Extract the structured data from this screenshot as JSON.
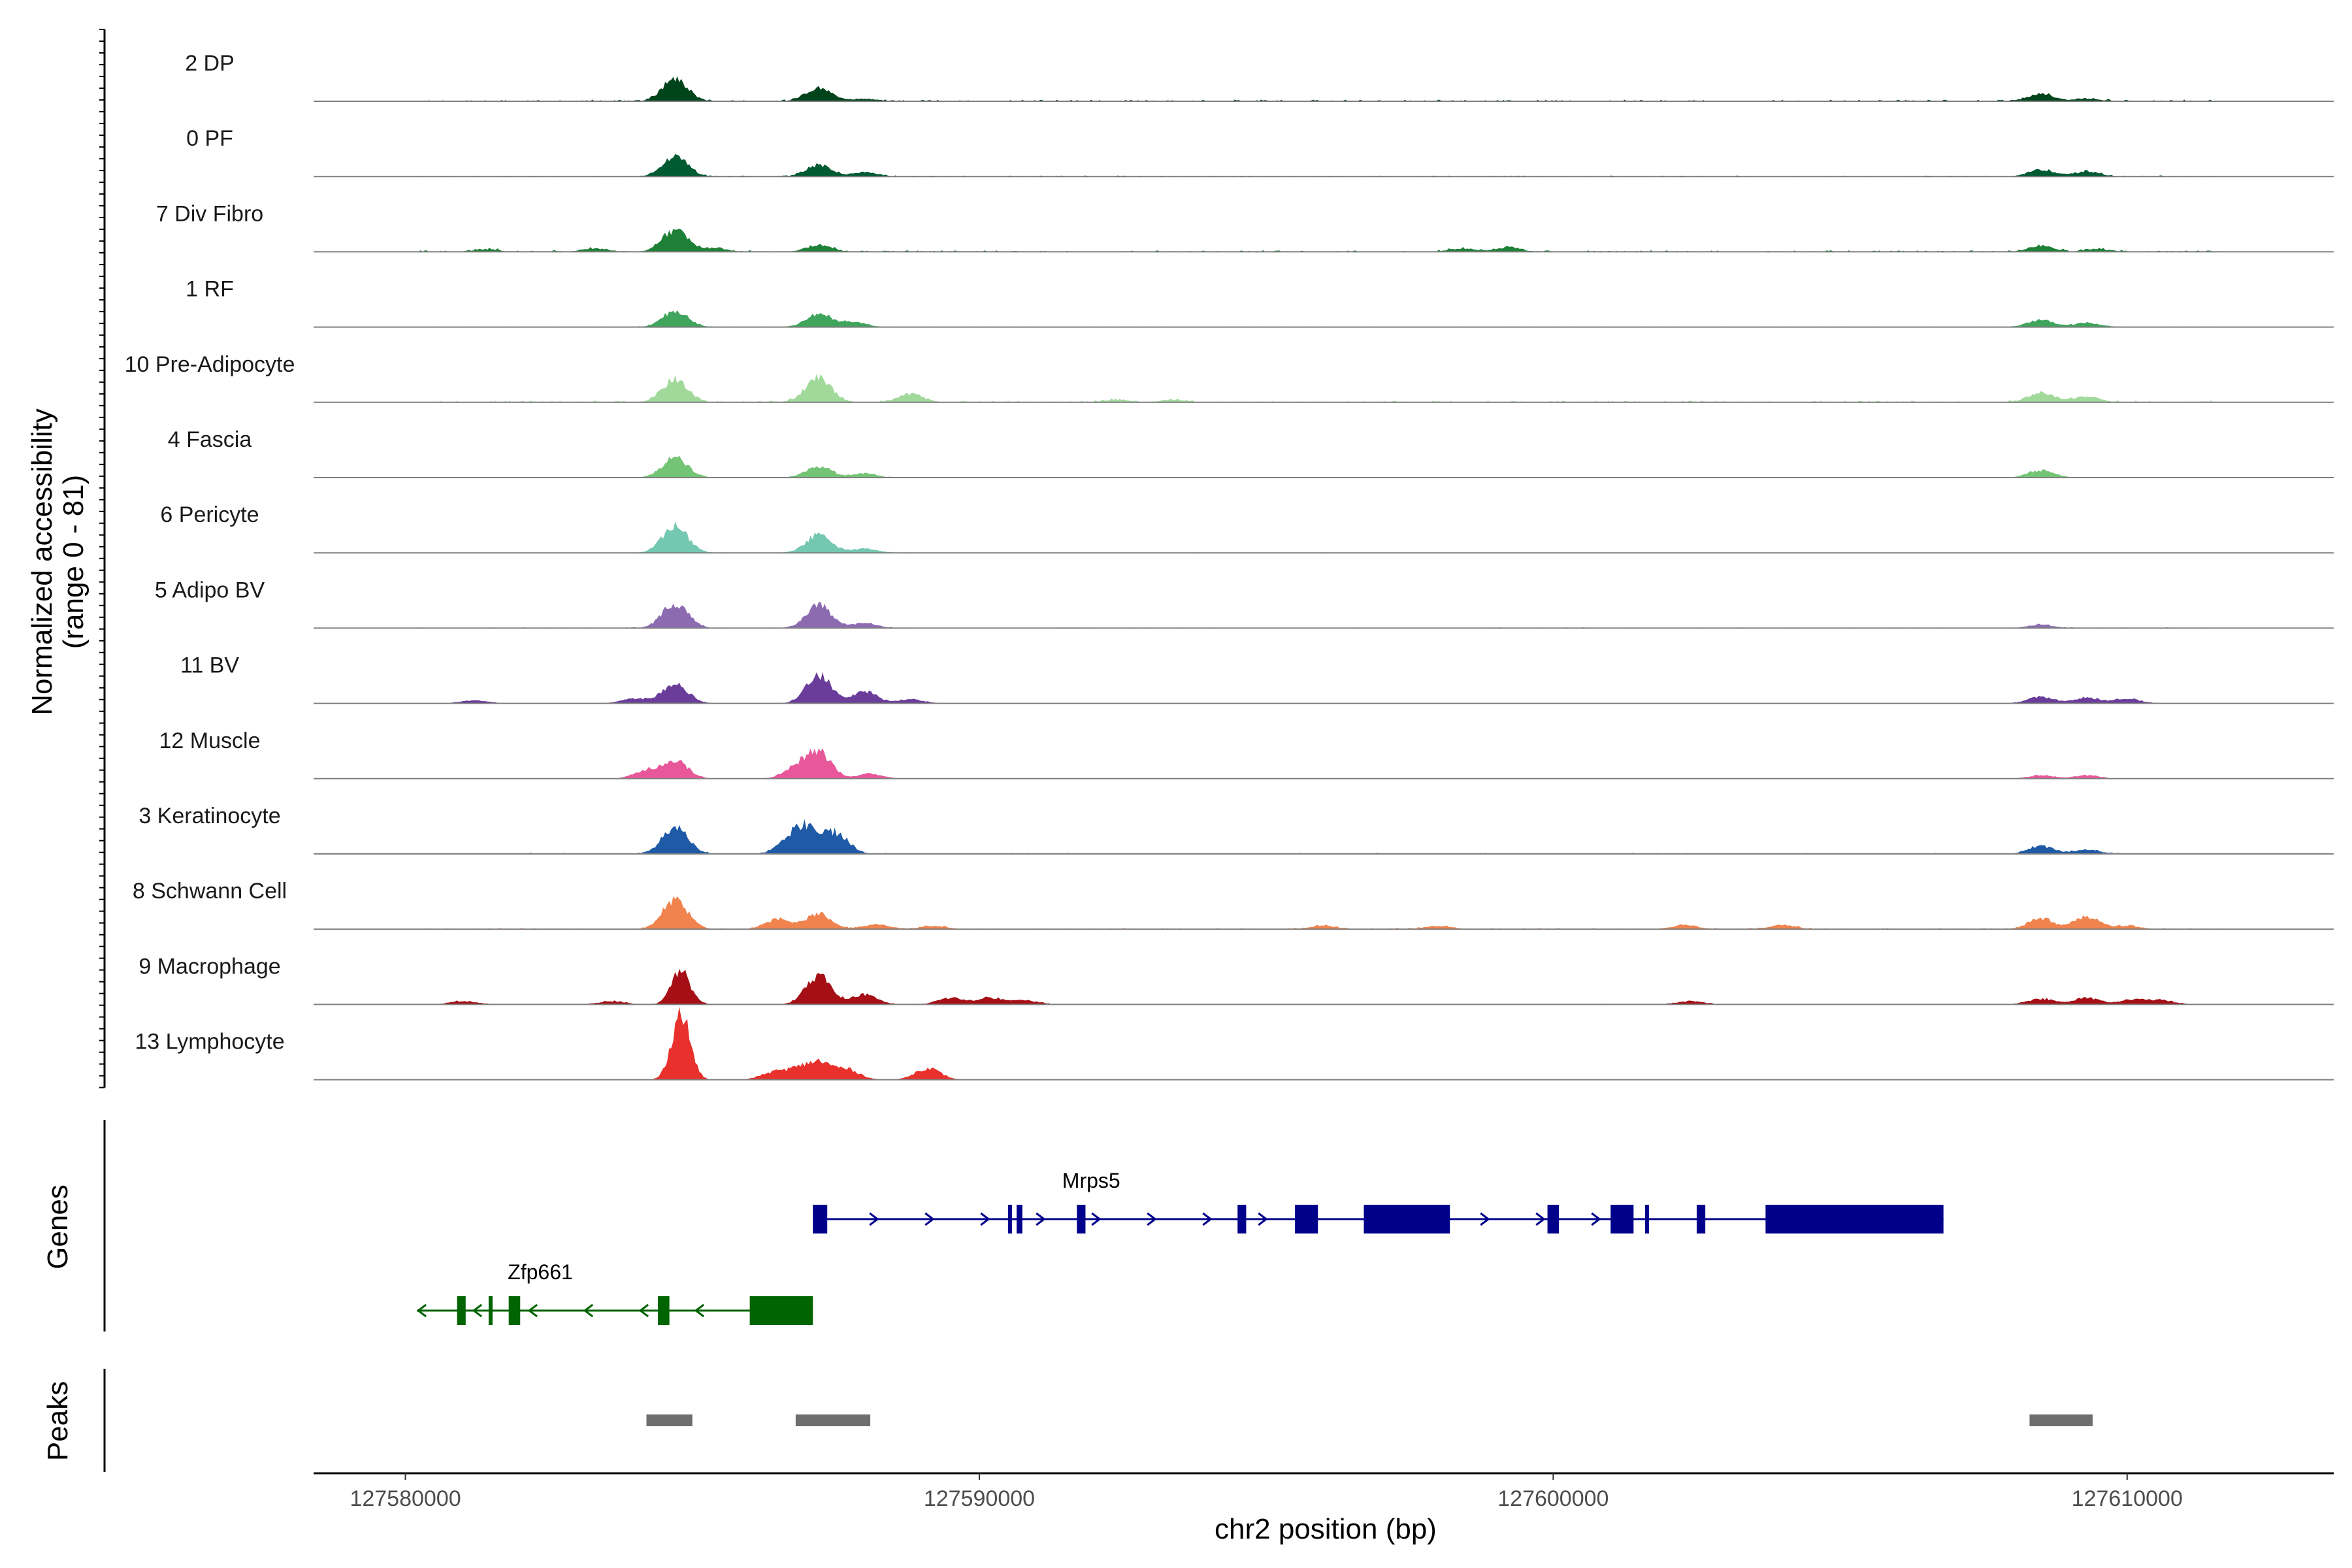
{
  "chart_data": {
    "type": "area",
    "subtype": "genome coverage tracks",
    "xlabel": "chr2 position (bp)",
    "ylabel_line1": "Normalized accessibility",
    "ylabel_line2": "(range 0 - 81)",
    "y_range": [
      0,
      81
    ],
    "xlim": [
      127578400,
      127613600
    ],
    "x_ticks": [
      127580000,
      127590000,
      127600000,
      127610000
    ],
    "x_tick_labels": [
      "127580000",
      "127590000",
      "127600000",
      "127610000"
    ],
    "tracks": [
      {
        "label": "2 DP",
        "color": "#00441b",
        "peaks": [
          [
            127584700,
            26
          ],
          [
            127587200,
            16
          ],
          [
            127588000,
            3
          ],
          [
            127608500,
            9
          ],
          [
            127609300,
            3
          ]
        ],
        "noise": 1.5
      },
      {
        "label": "0 PF",
        "color": "#005a32",
        "peaks": [
          [
            127584700,
            24
          ],
          [
            127587200,
            14
          ],
          [
            127588000,
            5
          ],
          [
            127608500,
            8
          ],
          [
            127609300,
            6
          ]
        ],
        "noise": 1.0
      },
      {
        "label": "7 Div Fibro",
        "color": "#1e8037",
        "peaks": [
          [
            127584700,
            26
          ],
          [
            127587200,
            8
          ],
          [
            127585400,
            4
          ],
          [
            127583300,
            4
          ],
          [
            127581400,
            3
          ],
          [
            127599200,
            5
          ],
          [
            127598400,
            4
          ],
          [
            127608500,
            7
          ],
          [
            127609500,
            3
          ]
        ],
        "noise": 1.5
      },
      {
        "label": "1 RF",
        "color": "#3fa55c",
        "peaks": [
          [
            127584700,
            20
          ],
          [
            127587200,
            16
          ],
          [
            127587800,
            6
          ],
          [
            127608500,
            9
          ],
          [
            127609300,
            5
          ]
        ],
        "noise": 0.6
      },
      {
        "label": "10 Pre-Adipocyte",
        "color": "#a1d99b",
        "peaks": [
          [
            127584700,
            28
          ],
          [
            127587200,
            30
          ],
          [
            127588800,
            10
          ],
          [
            127592400,
            3
          ],
          [
            127593400,
            3
          ],
          [
            127608500,
            12
          ],
          [
            127609300,
            7
          ]
        ],
        "noise": 1.5
      },
      {
        "label": "4 Fascia",
        "color": "#74c476",
        "peaks": [
          [
            127584700,
            24
          ],
          [
            127587200,
            14
          ],
          [
            127588000,
            5
          ],
          [
            127608500,
            9
          ]
        ],
        "noise": 0.5
      },
      {
        "label": "6 Pericyte",
        "color": "#74c7b0",
        "peaks": [
          [
            127584700,
            32
          ],
          [
            127587200,
            22
          ],
          [
            127588000,
            5
          ]
        ],
        "noise": 0.5
      },
      {
        "label": "5 Adipo BV",
        "color": "#8c6bb1",
        "peaks": [
          [
            127584700,
            30
          ],
          [
            127587200,
            28
          ],
          [
            127588000,
            6
          ],
          [
            127608500,
            4
          ]
        ],
        "noise": 0.8
      },
      {
        "label": "11 BV",
        "color": "#6a3d9a",
        "peaks": [
          [
            127584700,
            24
          ],
          [
            127587200,
            34
          ],
          [
            127588000,
            14
          ],
          [
            127588800,
            5
          ],
          [
            127581200,
            4
          ],
          [
            127584000,
            6
          ],
          [
            127608500,
            8
          ],
          [
            127609300,
            7
          ],
          [
            127610000,
            6
          ]
        ],
        "noise": 0.3
      },
      {
        "label": "12 Muscle",
        "color": "#e7579a",
        "peaks": [
          [
            127584700,
            22
          ],
          [
            127587200,
            32
          ],
          [
            127586800,
            12
          ],
          [
            127584200,
            10
          ],
          [
            127588100,
            6
          ],
          [
            127608500,
            4
          ],
          [
            127609300,
            4
          ]
        ],
        "noise": 0.2
      },
      {
        "label": "3 Keratinocyte",
        "color": "#1f5aa6",
        "peaks": [
          [
            127584700,
            32
          ],
          [
            127587000,
            28
          ],
          [
            127587500,
            24
          ],
          [
            127586700,
            14
          ],
          [
            127608500,
            9
          ],
          [
            127609300,
            5
          ]
        ],
        "noise": 1.0
      },
      {
        "label": "8 Schwann Cell",
        "color": "#f0834e",
        "peaks": [
          [
            127584700,
            36
          ],
          [
            127587200,
            18
          ],
          [
            127586500,
            12
          ],
          [
            127588200,
            6
          ],
          [
            127589200,
            4
          ],
          [
            127596000,
            4
          ],
          [
            127598000,
            4
          ],
          [
            127602300,
            5
          ],
          [
            127604000,
            5
          ],
          [
            127608500,
            13
          ],
          [
            127609300,
            15
          ],
          [
            127610000,
            4
          ]
        ],
        "noise": 1.0
      },
      {
        "label": "9 Macrophage",
        "color": "#a50f15",
        "peaks": [
          [
            127584800,
            42
          ],
          [
            127587200,
            34
          ],
          [
            127588000,
            12
          ],
          [
            127589500,
            8
          ],
          [
            127590200,
            8
          ],
          [
            127590800,
            5
          ],
          [
            127581000,
            4
          ],
          [
            127583600,
            4
          ],
          [
            127602400,
            4
          ],
          [
            127608500,
            7
          ],
          [
            127609300,
            8
          ],
          [
            127610100,
            6
          ],
          [
            127610600,
            5
          ]
        ],
        "noise": 0.6
      },
      {
        "label": "13 Lymphocyte",
        "color": "#e8312c",
        "peaks": [
          [
            127584800,
            81
          ],
          [
            127587200,
            20
          ],
          [
            127587700,
            12
          ],
          [
            127586400,
            8
          ],
          [
            127586800,
            10
          ],
          [
            127589100,
            14
          ]
        ],
        "noise": 0
      }
    ],
    "genes": [
      {
        "name": "Mrps5",
        "strand": "+",
        "color": "#00008b",
        "start": 127587100,
        "end": 127606800,
        "exons": [
          [
            127587100,
            127587350
          ],
          [
            127590500,
            127590540
          ],
          [
            127590650,
            127590750
          ],
          [
            127591700,
            127591850
          ],
          [
            127594500,
            127594650
          ],
          [
            127595500,
            127595900
          ],
          [
            127596700,
            127598200
          ],
          [
            127599900,
            127600100
          ],
          [
            127601000,
            127601400
          ],
          [
            127601600,
            127601650
          ],
          [
            127602500,
            127602650
          ],
          [
            127603700,
            127606800
          ]
        ]
      },
      {
        "name": "Zfp661",
        "strand": "-",
        "color": "#006400",
        "start": 127580200,
        "end": 127587100,
        "exons": [
          [
            127580900,
            127581050
          ],
          [
            127581450,
            127581500
          ],
          [
            127581800,
            127582000
          ],
          [
            127584400,
            127584600
          ],
          [
            127586000,
            127587100
          ]
        ]
      }
    ],
    "peaks": [
      [
        127584200,
        127585000
      ],
      [
        127586800,
        127588100
      ],
      [
        127608300,
        127609400
      ]
    ],
    "panel_labels": {
      "genes": "Genes",
      "peaks": "Peaks"
    }
  }
}
